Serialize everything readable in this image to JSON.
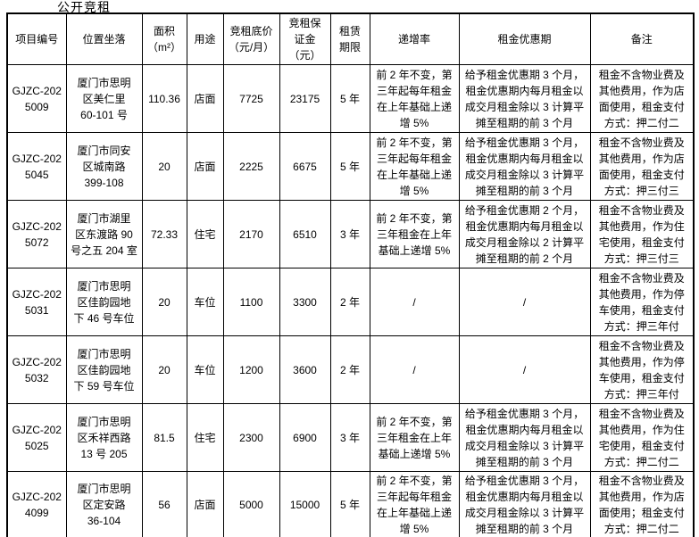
{
  "page": {
    "title": "公开竞租"
  },
  "colors": {
    "background": "#ffffff",
    "text": "#000000",
    "border": "#000000"
  },
  "table": {
    "headers": [
      "项目编号",
      "位置坐落",
      "面积\n（m²）",
      "用途",
      "竞租底价\n（元/月）",
      "竞租保\n证金\n（元）",
      "租赁\n期限",
      "递增率",
      "租金优惠期",
      "备注"
    ],
    "rows": [
      [
        "GJZC-202\n5009",
        "厦门市思明\n区美仁里\n60-101 号",
        "110.36",
        "店面",
        "7725",
        "23175",
        "5 年",
        "前 2 年不变，第\n三年起每年租金\n在上年基础上递\n增 5%",
        "给予租金优惠期 3 个月，\n租金优惠期内每月租金以\n成交月租金除以 3 计算平\n摊至租期的前 3 个月",
        "租金不含物业费及\n其他费用，作为店\n面使用，租金支付\n方式：押二付二"
      ],
      [
        "GJZC-202\n5045",
        "厦门市同安\n区城南路\n399-108",
        "20",
        "店面",
        "2225",
        "6675",
        "5 年",
        "前 2 年不变，第\n三年起每年租金\n在上年基础上递\n增 5%",
        "给予租金优惠期 3 个月，\n租金优惠期内每月租金以\n成交月租金除以 3 计算平\n摊至租期的前 3 个月",
        "租金不含物业费及\n其他费用，作为店\n面使用，租金支付\n方式：押三付三"
      ],
      [
        "GJZC-202\n5072",
        "厦门市湖里\n区东渡路 90\n号之五 204 室",
        "72.33",
        "住宅",
        "2170",
        "6510",
        "3 年",
        "前 2 年不变，第\n三年租金在上年\n基础上递增 5%",
        "给予租金优惠期 2 个月，\n租金优惠期内每月租金以\n成交月租金除以 2 计算平\n摊至租期的前 2 个月",
        "租金不含物业费及\n其他费用，作为住\n宅使用，租金支付\n方式：押三付三"
      ],
      [
        "GJZC-202\n5031",
        "厦门市思明\n区佳韵园地\n下 46 号车位",
        "20",
        "车位",
        "1100",
        "3300",
        "2 年",
        "/",
        "/",
        "租金不含物业费及\n其他费用，作为停\n车使用，租金支付\n方式：押三年付"
      ],
      [
        "GJZC-202\n5032",
        "厦门市思明\n区佳韵园地\n下 59 号车位",
        "20",
        "车位",
        "1200",
        "3600",
        "2 年",
        "/",
        "/",
        "租金不含物业费及\n其他费用，作为停\n车使用，租金支付\n方式：押三年付"
      ],
      [
        "GJZC-202\n5025",
        "厦门市思明\n区禾祥西路\n13 号 205",
        "81.5",
        "住宅",
        "2300",
        "6900",
        "3 年",
        "前 2 年不变，第\n三年租金在上年\n基础上递增 5%",
        "给予租金优惠期 3 个月，\n租金优惠期内每月租金以\n成交月租金除以 3 计算平\n摊至租期的前 3 个月",
        "租金不含物业费及\n其他费用，作为住\n宅使用，租金支付\n方式：押二付二"
      ],
      [
        "GJZC-202\n4099",
        "厦门市思明\n区定安路\n36-104",
        "56",
        "店面",
        "5000",
        "15000",
        "5 年",
        "前 2 年不变，第\n三年起每年租金\n在上年基础上递\n增 5%",
        "给予租金优惠期 3 个月，\n租金优惠期内每月租金以\n成交月租金除以 3 计算平\n摊至租期的前 3 个月",
        "租金不含物业费及\n其他费用，作为店\n面使用；租金支付\n方式：押二付二"
      ]
    ]
  }
}
